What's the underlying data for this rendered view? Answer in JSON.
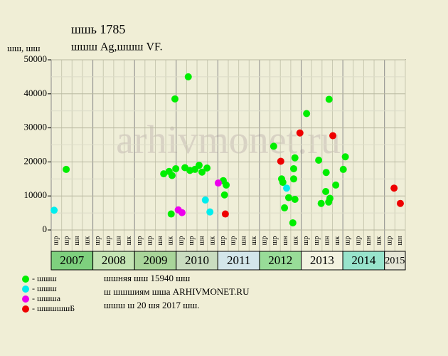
{
  "chart_data": {
    "type": "scatter",
    "title": "шшь 1785",
    "subtitle": "шшш Ag,шшш VF.",
    "y_label": "шш, шш",
    "watermark": "arhivmonet.ru",
    "xlim": [
      2007,
      2015.5
    ],
    "xticks": [
      {
        "value": 2007.5,
        "label": "2007"
      },
      {
        "value": 2008.5,
        "label": "2008"
      },
      {
        "value": 2009.5,
        "label": "2009"
      },
      {
        "value": 2010.5,
        "label": "2010"
      },
      {
        "value": 2011.5,
        "label": "2011"
      },
      {
        "value": 2012.5,
        "label": "2012"
      },
      {
        "value": 2013.5,
        "label": "2013"
      },
      {
        "value": 2014.5,
        "label": "2014"
      },
      {
        "value": 2015.25,
        "label": "2015"
      }
    ],
    "year_band_colors": [
      "#7ed07e",
      "#c4e4b4",
      "#a9d59a",
      "#c9dcc0",
      "#d3e6ea",
      "#98dc98",
      "#f2f2e0",
      "#98e4cc",
      "#e6e6d6"
    ],
    "column_labels": [
      "шр",
      "шр",
      "шн",
      "шк",
      "шр",
      "шр",
      "шн",
      "шк",
      "шр",
      "шр",
      "шн",
      "шк",
      "шр",
      "шр",
      "шн",
      "шк",
      "шр",
      "шр",
      "шн",
      "шк",
      "шр",
      "шр",
      "шн",
      "шк",
      "шр",
      "шр",
      "шн",
      "шк",
      "шр",
      "шр",
      "шн",
      "шк",
      "шр",
      "шн"
    ],
    "ylim": [
      0,
      50000
    ],
    "yticks": [
      0,
      10000,
      20000,
      30000,
      40000,
      50000
    ],
    "grid": true,
    "series": [
      {
        "name": "- шшш",
        "color": "#00ee00",
        "x": [
          2007.36,
          2009.7,
          2009.83,
          2009.9,
          2009.88,
          2009.97,
          2009.99,
          2010.21,
          2010.29,
          2010.33,
          2010.45,
          2010.55,
          2010.62,
          2010.74,
          2011.13,
          2011.2,
          2011.16,
          2012.34,
          2012.53,
          2012.56,
          2012.6,
          2012.7,
          2012.82,
          2012.82,
          2012.85,
          2012.85,
          2012.8,
          2013.13,
          2013.42,
          2013.48,
          2013.59,
          2013.6,
          2013.66,
          2013.69,
          2013.67,
          2013.83,
          2014.01,
          2014.06
        ],
        "values": [
          17800,
          16500,
          17200,
          16000,
          4700,
          38500,
          18000,
          18300,
          45000,
          17500,
          17800,
          19000,
          17000,
          18200,
          14500,
          13200,
          10300,
          24600,
          15000,
          14000,
          6500,
          9500,
          15000,
          18000,
          21200,
          9000,
          2100,
          34200,
          20500,
          7800,
          11300,
          16900,
          8200,
          9300,
          38400,
          13200,
          17800,
          21500
        ]
      },
      {
        "name": "- шшш",
        "color": "#00eeee",
        "x": [
          2007.07,
          2010.7,
          2010.81,
          2012.65
        ],
        "values": [
          5800,
          8800,
          5300,
          12300
        ]
      },
      {
        "name": "- шшша",
        "color": "#ee00ee",
        "x": [
          2010.05,
          2010.14,
          2011.01
        ],
        "values": [
          5900,
          5100,
          13800
        ]
      },
      {
        "name": "- шшшшшБ",
        "color": "#ee0000",
        "x": [
          2011.18,
          2012.51,
          2012.97,
          2013.76,
          2015.23,
          2015.38
        ],
        "values": [
          4700,
          20200,
          28500,
          27700,
          12300,
          7800
        ]
      }
    ],
    "notes": [
      "шшняя шш 15940 шш",
      "ш шшшиям шша ARHIVMONET.RU",
      "шшш ш 20 шя 2017 шш."
    ]
  }
}
